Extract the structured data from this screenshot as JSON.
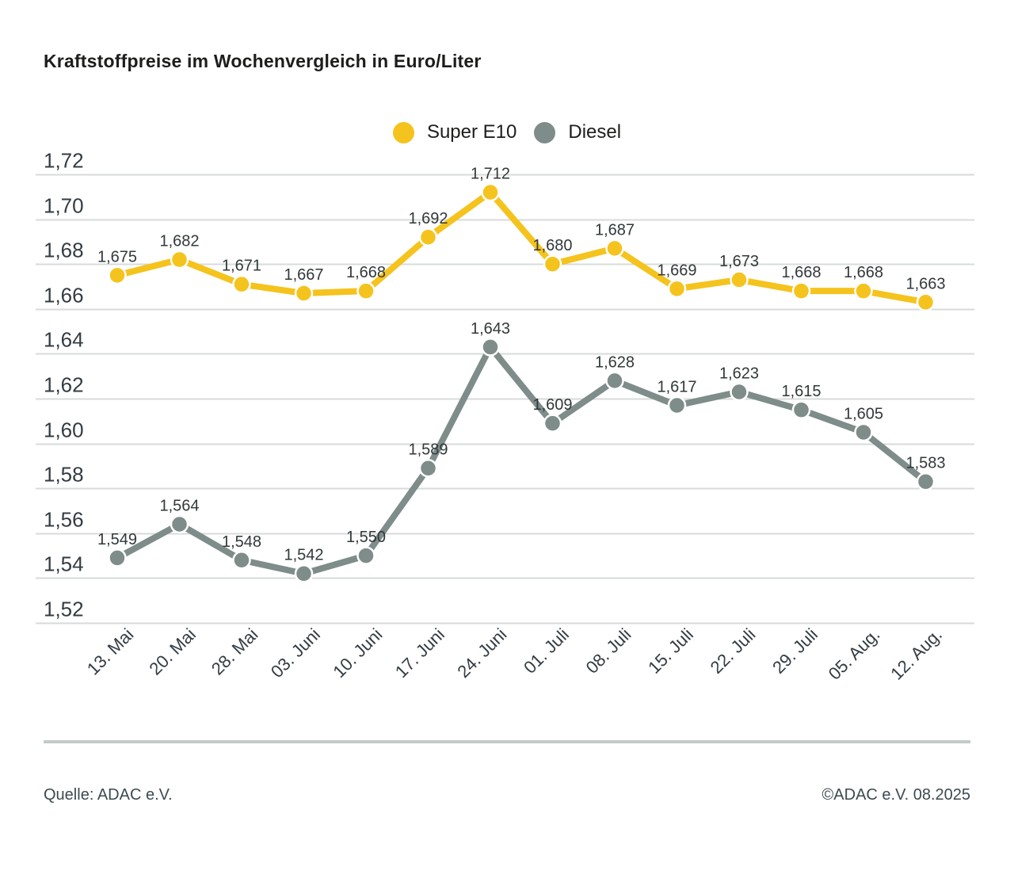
{
  "page": {
    "title": "Kraftstoffpreise im Wochenvergleich in Euro/Liter"
  },
  "legend": [
    {
      "label": "Super E10",
      "color": "#F5C31D"
    },
    {
      "label": "Diesel",
      "color": "#7E8C8A"
    }
  ],
  "footer": {
    "source": "Quelle: ADAC e.V.",
    "copyright": "©ADAC e.V. 08.2025"
  },
  "colors": {
    "grid": "#D7DBD9",
    "axis_text": "#333C42",
    "data_label": "#32383A",
    "divider": "#C3CBC8",
    "footer_text": "#3C4A4E",
    "title": "#1D1D1B"
  },
  "chart_data": {
    "type": "line",
    "title": "Kraftstoffpreise im Wochenvergleich in Euro/Liter",
    "xlabel": "",
    "ylabel": "Euro/Liter",
    "grid": true,
    "legend_position": "top-center",
    "ylim": [
      1.52,
      1.72
    ],
    "categories": [
      "13. Mai",
      "20. Mai",
      "28. Mai",
      "03. Juni",
      "10. Juni",
      "17. Juni",
      "24. Juni",
      "01. Juli",
      "08. Juli",
      "15. Juli",
      "22. Juli",
      "29. Juli",
      "05. Aug.",
      "12. Aug."
    ],
    "y_axis": {
      "min": 1.52,
      "max": 1.72,
      "step": 0.02,
      "tick_labels": [
        "1,72",
        "1,70",
        "1,68",
        "1,66",
        "1,64",
        "1,62",
        "1,60",
        "1,58",
        "1,56",
        "1,54",
        "1,52"
      ]
    },
    "series": [
      {
        "name": "Super E10",
        "color": "#F5C31D",
        "values": [
          1.675,
          1.682,
          1.671,
          1.667,
          1.668,
          1.692,
          1.712,
          1.68,
          1.687,
          1.669,
          1.673,
          1.668,
          1.668,
          1.663
        ],
        "labels": [
          "1,675",
          "1,682",
          "1,671",
          "1,667",
          "1,668",
          "1,692",
          "1,712",
          "1,680",
          "1,687",
          "1,669",
          "1,673",
          "1,668",
          "1,668",
          "1,663"
        ]
      },
      {
        "name": "Diesel",
        "color": "#7E8C8A",
        "values": [
          1.549,
          1.564,
          1.548,
          1.542,
          1.55,
          1.589,
          1.643,
          1.609,
          1.628,
          1.617,
          1.623,
          1.615,
          1.605,
          1.583
        ],
        "labels": [
          "1,549",
          "1,564",
          "1,548",
          "1,542",
          "1,550",
          "1,589",
          "1,643",
          "1,609",
          "1,628",
          "1,617",
          "1,623",
          "1,615",
          "1,605",
          "1,583"
        ]
      }
    ]
  }
}
